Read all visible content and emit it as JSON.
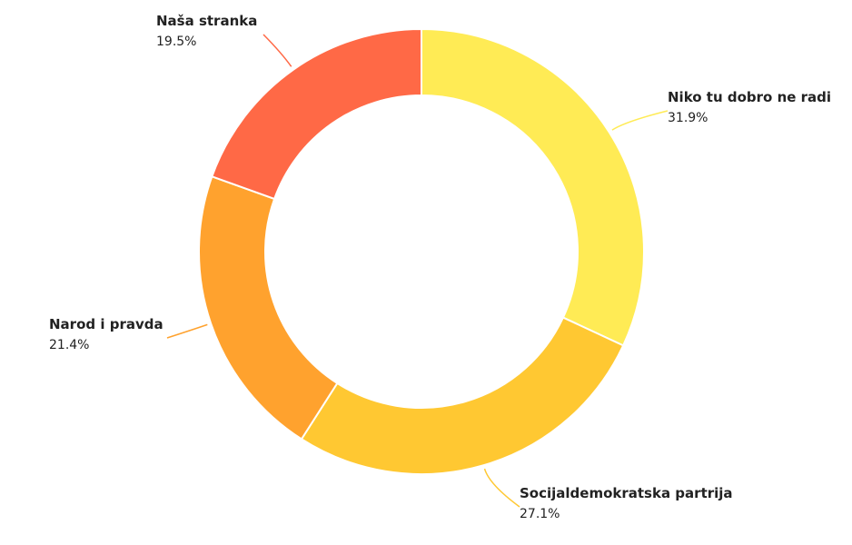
{
  "chart_data": {
    "type": "pie",
    "variant": "donut",
    "legend": "none",
    "slices": [
      {
        "label": "Niko tu dobro ne radi",
        "value": 31.9,
        "value_label": "31.9%",
        "color": "#FFEB55"
      },
      {
        "label": "Socijaldemokratska partrija",
        "value": 27.1,
        "value_label": "27.1%",
        "color": "#FFC832"
      },
      {
        "label": "Narod i pravda",
        "value": 21.4,
        "value_label": "21.4%",
        "color": "#FFA22E"
      },
      {
        "label": "Naša stranka",
        "value": 19.5,
        "value_label": "19.5%",
        "color": "#FF6946"
      }
    ]
  }
}
